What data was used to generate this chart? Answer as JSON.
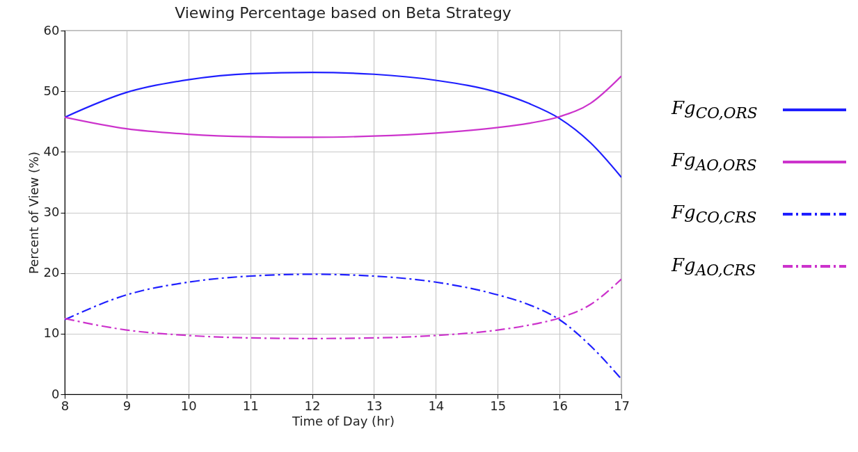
{
  "chart_data": {
    "type": "line",
    "title": "Viewing Percentage based on Beta Strategy",
    "xlabel": "Time of Day (hr)",
    "ylabel": "Percent of View (%)",
    "x": [
      8,
      9,
      10,
      11,
      12,
      13,
      14,
      15,
      15.5,
      16,
      16.5,
      17
    ],
    "series": [
      {
        "name": "Fg$_{CO,ORS}$",
        "color": "#1f1fff",
        "line_style": "solid",
        "values": [
          45.7,
          49.8,
          51.9,
          52.9,
          53.1,
          52.8,
          51.8,
          49.8,
          48.0,
          45.5,
          41.5,
          35.8
        ]
      },
      {
        "name": "Fg$_{AO,ORS}$",
        "color": "#cc33cc",
        "line_style": "solid",
        "values": [
          45.7,
          43.8,
          42.9,
          42.5,
          42.4,
          42.6,
          43.1,
          44.0,
          44.7,
          45.8,
          48.0,
          52.5
        ]
      },
      {
        "name": "Fg$_{CO,CRS}$",
        "color": "#1f1fff",
        "line_style": "dashdot",
        "values": [
          12.3,
          16.4,
          18.5,
          19.5,
          19.8,
          19.5,
          18.5,
          16.4,
          14.8,
          12.3,
          8.0,
          2.5
        ]
      },
      {
        "name": "Fg$_{AO,CRS}$",
        "color": "#cc33cc",
        "line_style": "dashdot",
        "values": [
          12.5,
          10.6,
          9.7,
          9.3,
          9.2,
          9.3,
          9.7,
          10.6,
          11.4,
          12.6,
          14.8,
          19.0
        ]
      }
    ],
    "xlim": [
      8,
      17
    ],
    "xticks": [
      8,
      9,
      10,
      11,
      12,
      13,
      14,
      15,
      16,
      17
    ],
    "ylim": [
      0,
      60
    ],
    "yticks": [
      0,
      10,
      20,
      30,
      40,
      50,
      60
    ],
    "grid": true,
    "legend": "right"
  }
}
